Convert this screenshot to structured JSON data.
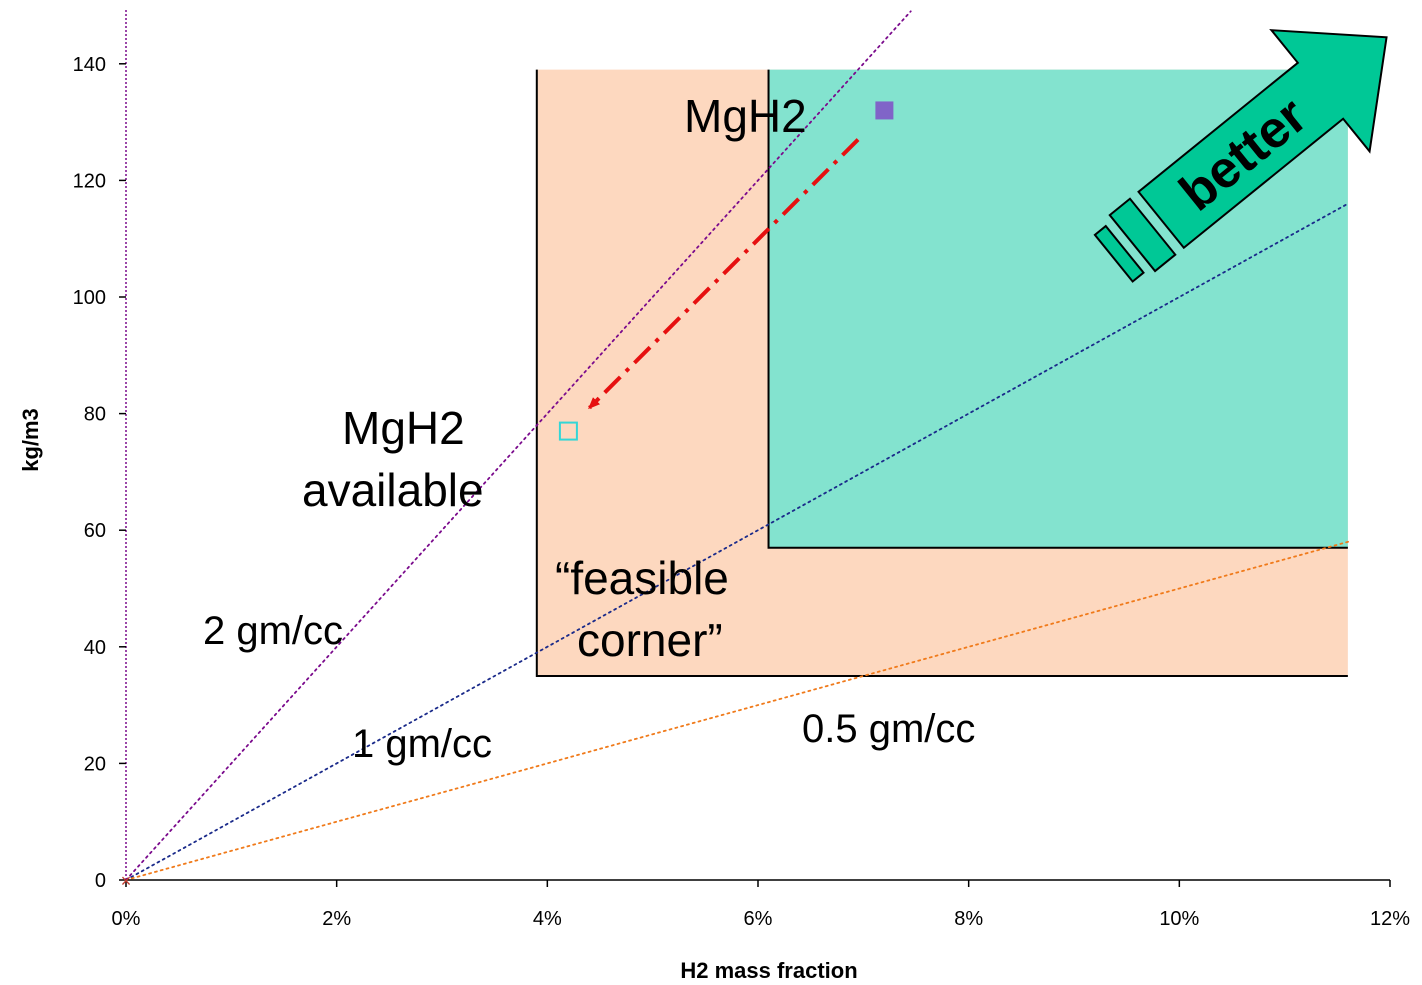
{
  "chart_data": {
    "type": "scatter",
    "xlabel": "H2 mass fraction",
    "ylabel": "kg/m3",
    "xlim": [
      0,
      0.12
    ],
    "ylim": [
      0,
      150
    ],
    "x_ticks": [
      0,
      0.02,
      0.04,
      0.06,
      0.08,
      0.1,
      0.12
    ],
    "x_tick_labels": [
      "0%",
      "2%",
      "4%",
      "6%",
      "8%",
      "10%",
      "12%"
    ],
    "y_ticks": [
      0,
      20,
      40,
      60,
      80,
      100,
      120,
      140
    ],
    "y_tick_labels": [
      "0",
      "20",
      "40",
      "60",
      "80",
      "100",
      "120",
      "140"
    ],
    "regions": [
      {
        "name": "feasible-corner",
        "x": [
          0.039,
          0.116
        ],
        "y": [
          35,
          139
        ],
        "color": "#fdd8bf"
      },
      {
        "name": "target",
        "x": [
          0.061,
          0.116
        ],
        "y": [
          57,
          139
        ],
        "color": "#83e3cf"
      }
    ],
    "density_lines": [
      {
        "label": "2 gm/cc",
        "density_kg_per_m3": 2000,
        "color": "#7a0a8c"
      },
      {
        "label": "1 gm/cc",
        "density_kg_per_m3": 1000,
        "color": "#1a2a8a"
      },
      {
        "label": "0.5 gm/cc",
        "density_kg_per_m3": 500,
        "color": "#f07a1a"
      }
    ],
    "points": [
      {
        "name": "MgH2",
        "x": 0.072,
        "y": 132,
        "marker": "filled-square",
        "color": "#8064c8"
      },
      {
        "name": "MgH2 available",
        "x": 0.042,
        "y": 77,
        "marker": "open-square",
        "color": "#33d6d6"
      }
    ],
    "arrow": {
      "from": [
        0.0695,
        127
      ],
      "to": [
        0.044,
        81
      ],
      "color": "#e61010"
    },
    "annotations": {
      "mgh2_label": "MgH2",
      "mgh2_avail_line1": "MgH2",
      "mgh2_avail_line2": "available",
      "feasible_line1": "“feasible",
      "feasible_line2": "corner”",
      "label_2": "2 gm/cc",
      "label_1": "1 gm/cc",
      "label_05": "0.5 gm/cc",
      "better": "better"
    },
    "better_arrow_color": "#00c896"
  }
}
